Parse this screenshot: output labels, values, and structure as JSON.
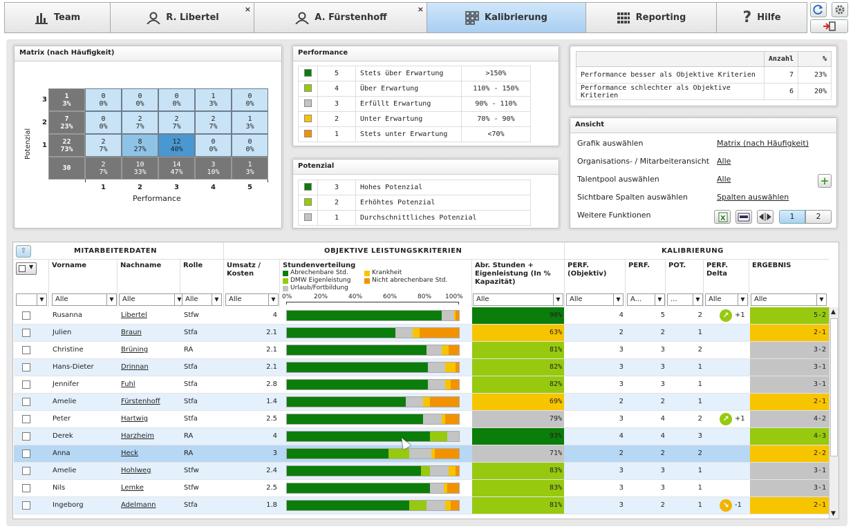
{
  "tabs": [
    {
      "label": "Team",
      "icon": "bar-chart-icon"
    },
    {
      "label": "R. Libertel",
      "icon": "person-icon",
      "closable": "×"
    },
    {
      "label": "A. Fürstenhoff",
      "icon": "person-icon",
      "closable": "×"
    },
    {
      "label": "Kalibrierung",
      "icon": "grid-icon"
    },
    {
      "label": "Reporting",
      "icon": "table-icon"
    },
    {
      "label": "Hilfe",
      "icon": "question-icon"
    }
  ],
  "matrix": {
    "title": "Matrix (nach Häufigkeit)",
    "ylabel": "Potenzial",
    "xlabel": "Performance",
    "rows": [
      {
        "y": "3",
        "total": [
          "1",
          "3%"
        ],
        "cells": [
          [
            "0",
            "0%"
          ],
          [
            "0",
            "0%"
          ],
          [
            "0",
            "0%"
          ],
          [
            "1",
            "3%"
          ],
          [
            "0",
            "0%"
          ]
        ]
      },
      {
        "y": "2",
        "total": [
          "7",
          "23%"
        ],
        "cells": [
          [
            "0",
            "0%"
          ],
          [
            "2",
            "7%"
          ],
          [
            "2",
            "7%"
          ],
          [
            "2",
            "7%"
          ],
          [
            "1",
            "3%"
          ]
        ]
      },
      {
        "y": "1",
        "total": [
          "22",
          "73%"
        ],
        "cells": [
          [
            "2",
            "7%"
          ],
          [
            "8",
            "27%"
          ],
          [
            "12",
            "40%"
          ],
          [
            "0",
            "0%"
          ],
          [
            "0",
            "0%"
          ]
        ]
      }
    ],
    "bottom": {
      "total": "30",
      "cells": [
        [
          "2",
          "7%"
        ],
        [
          "10",
          "33%"
        ],
        [
          "14",
          "47%"
        ],
        [
          "3",
          "10%"
        ],
        [
          "1",
          "3%"
        ]
      ]
    },
    "xticks": [
      "1",
      "2",
      "3",
      "4",
      "5"
    ]
  },
  "performance": {
    "title": "Performance",
    "rows": [
      {
        "color": "#0b7d0b",
        "n": "5",
        "label": "Stets über Erwartung",
        "range": ">150%"
      },
      {
        "color": "#97c90f",
        "n": "4",
        "label": "Über Erwartung",
        "range": "110% - 150%"
      },
      {
        "color": "#c4c4c4",
        "n": "3",
        "label": "Erfüllt Erwartung",
        "range": "90% - 110%"
      },
      {
        "color": "#f7c500",
        "n": "2",
        "label": "Unter Erwartung",
        "range": "70% - 90%"
      },
      {
        "color": "#f39200",
        "n": "1",
        "label": "Stets unter Erwartung",
        "range": "<70%"
      }
    ]
  },
  "potenzial": {
    "title": "Potenzial",
    "rows": [
      {
        "color": "#0b7d0b",
        "n": "3",
        "label": "Hohes Potenzial"
      },
      {
        "color": "#97c90f",
        "n": "2",
        "label": "Erhöhtes Potenzial"
      },
      {
        "color": "#c4c4c4",
        "n": "1",
        "label": "Durchschnittliches Potenzial"
      }
    ]
  },
  "stats": {
    "h_anzahl": "Anzahl",
    "h_pct": "%",
    "rows": [
      {
        "label": "Performance besser als Objektive Kriterien",
        "n": "7",
        "pct": "23%"
      },
      {
        "label": "Performance schlechter als Objektive Kriterien",
        "n": "6",
        "pct": "20%"
      }
    ]
  },
  "ansicht": {
    "title": "Ansicht",
    "rows": [
      {
        "label": "Grafik auswählen",
        "value": "Matrix (nach Häufigkeit)"
      },
      {
        "label": "Organisations- / Mitarbeiteransicht",
        "value": "Alle"
      },
      {
        "label": "Talentpool auswählen",
        "value": "Alle"
      },
      {
        "label": "Sichtbare Spalten auswählen",
        "value": "Spalten auswählen"
      },
      {
        "label": "Weitere Funktionen",
        "value": ""
      }
    ],
    "page1": "1",
    "page2": "2"
  },
  "grid": {
    "group1": "MITARBEITERDATEN",
    "group2": "OBJEKTIVE LEISTUNGSKRITERIEN",
    "group3": "KALIBRIERUNG",
    "cols": {
      "vorname": "Vorname",
      "nachname": "Nachname",
      "rolle": "Rolle",
      "umsatz": "Umsatz / Kosten",
      "stunden": "Stundenverteilung",
      "abr": "Abr. Stunden + Eigenleistung (In % Kapazität)",
      "perfobj": "PERF. (Objektiv)",
      "perf": "PERF.",
      "pot": "POT.",
      "delta": "PERF. Delta",
      "ergebnis": "ERGEBNIS"
    },
    "legend": [
      "Abrechenbare Std.",
      "Krankheit",
      "DMW Eigenleistung",
      "Nicht abrechenbare Std.",
      "Urlaub/Fortbildung"
    ],
    "ticks": [
      "0%",
      "20%",
      "40%",
      "60%",
      "80%",
      "100%"
    ],
    "filters": {
      "alle": "Alle",
      "a": "A...",
      "dots": "..."
    },
    "rows": [
      {
        "vn": "Rusanna",
        "nn": "Libertel",
        "r": "Stfw",
        "u": "4",
        "bar": [
          90,
          0,
          7,
          1,
          2
        ],
        "kap": "90%",
        "kc": "#0b7d0b",
        "po": "4",
        "p": "5",
        "pot": "2",
        "d": "+1",
        "dc": "up",
        "e": "5-2",
        "ec": "#97c90f"
      },
      {
        "vn": "Julien",
        "nn": "Braun",
        "r": "Stfa",
        "u": "2.1",
        "bar": [
          63,
          0,
          10,
          4,
          23
        ],
        "kap": "63%",
        "kc": "#f7c500",
        "po": "2",
        "p": "2",
        "pot": "1",
        "d": "",
        "dc": "",
        "e": "2-1",
        "ec": "#f7c500"
      },
      {
        "vn": "Christine",
        "nn": "Brüning",
        "r": "RA",
        "u": "2.1",
        "bar": [
          81,
          0,
          9,
          4,
          6
        ],
        "kap": "81%",
        "kc": "#97c90f",
        "po": "3",
        "p": "3",
        "pot": "2",
        "d": "",
        "dc": "",
        "e": "3-2",
        "ec": "#c4c4c4"
      },
      {
        "vn": "Hans-Dieter",
        "nn": "Drinnan",
        "r": "Stfa",
        "u": "2.1",
        "bar": [
          82,
          0,
          10,
          6,
          2
        ],
        "kap": "82%",
        "kc": "#97c90f",
        "po": "3",
        "p": "3",
        "pot": "1",
        "d": "",
        "dc": "",
        "e": "3-1",
        "ec": "#c4c4c4"
      },
      {
        "vn": "Jennifer",
        "nn": "Fuhl",
        "r": "Stfa",
        "u": "2.8",
        "bar": [
          82,
          0,
          10,
          3,
          5
        ],
        "kap": "82%",
        "kc": "#97c90f",
        "po": "3",
        "p": "3",
        "pot": "1",
        "d": "",
        "dc": "",
        "e": "3-1",
        "ec": "#c4c4c4"
      },
      {
        "vn": "Amelie",
        "nn": "Fürstenhoff",
        "r": "Stfa",
        "u": "1.4",
        "bar": [
          69,
          0,
          10,
          4,
          17
        ],
        "kap": "69%",
        "kc": "#f7c500",
        "po": "2",
        "p": "2",
        "pot": "1",
        "d": "",
        "dc": "",
        "e": "2-1",
        "ec": "#f7c500"
      },
      {
        "vn": "Peter",
        "nn": "Hartwig",
        "r": "Stfa",
        "u": "2.5",
        "bar": [
          79,
          0,
          11,
          2,
          8
        ],
        "kap": "79%",
        "kc": "#c4c4c4",
        "po": "3",
        "p": "4",
        "pot": "2",
        "d": "+1",
        "dc": "up",
        "e": "4-2",
        "ec": "#c4c4c4"
      },
      {
        "vn": "Derek",
        "nn": "Harzheim",
        "r": "RA",
        "u": "4",
        "bar": [
          83,
          10,
          7,
          0,
          0
        ],
        "kap": "93%",
        "kc": "#0b7d0b",
        "po": "4",
        "p": "4",
        "pot": "3",
        "d": "",
        "dc": "",
        "e": "4-3",
        "ec": "#97c90f"
      },
      {
        "vn": "Anna",
        "nn": "Heck",
        "r": "RA",
        "u": "3",
        "bar": [
          59,
          12,
          13,
          2,
          14
        ],
        "kap": "71%",
        "kc": "#c4c4c4",
        "po": "2",
        "p": "2",
        "pot": "2",
        "d": "",
        "dc": "",
        "e": "2-2",
        "ec": "#f7c500"
      },
      {
        "vn": "Amelie",
        "nn": "Hohlweg",
        "r": "Stfw",
        "u": "2.4",
        "bar": [
          78,
          5,
          11,
          4,
          2
        ],
        "kap": "83%",
        "kc": "#97c90f",
        "po": "3",
        "p": "3",
        "pot": "1",
        "d": "",
        "dc": "",
        "e": "3-1",
        "ec": "#c4c4c4"
      },
      {
        "vn": "Nils",
        "nn": "Lemke",
        "r": "Stfw",
        "u": "2.5",
        "bar": [
          83,
          0,
          8,
          2,
          7
        ],
        "kap": "83%",
        "kc": "#97c90f",
        "po": "3",
        "p": "3",
        "pot": "1",
        "d": "",
        "dc": "",
        "e": "3-1",
        "ec": "#c4c4c4"
      },
      {
        "vn": "Ingeborg",
        "nn": "Adelmann",
        "r": "Stfa",
        "u": "1.8",
        "bar": [
          71,
          10,
          11,
          3,
          5
        ],
        "kap": "81%",
        "kc": "#97c90f",
        "po": "3",
        "p": "2",
        "pot": "1",
        "d": "-1",
        "dc": "down",
        "e": "2-1",
        "ec": "#f7c500"
      }
    ]
  },
  "colors": {
    "green": "#0b7d0b",
    "lime": "#97c90f",
    "grey": "#c4c4c4",
    "yellow": "#f7c500",
    "orange": "#f39200",
    "selected_row": "#b7d8f4",
    "alt_row": "#e4f0fb"
  }
}
